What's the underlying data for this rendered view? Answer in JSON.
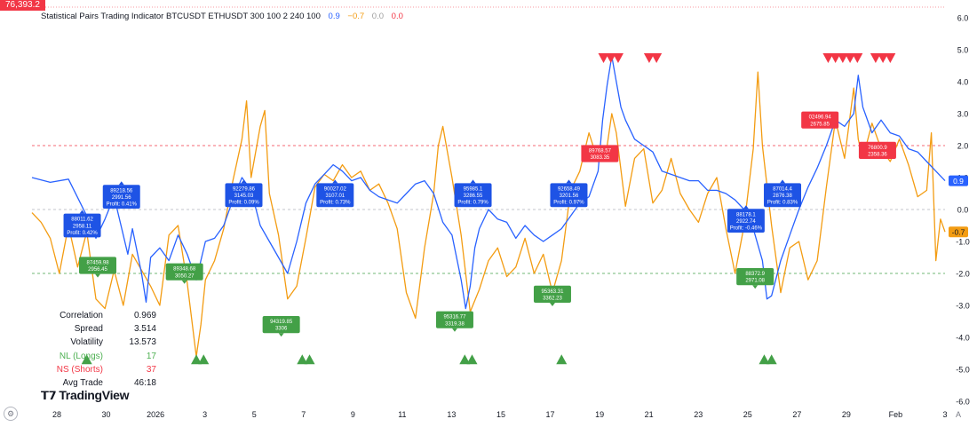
{
  "price_tag": "76,393.2",
  "title": {
    "text": "Statistical Pairs Trading Indicator BTCUSDT ETHUSDT 300 100 2 240 100",
    "val_blue": "0.9",
    "val_orange": "−0.7",
    "val_gray": "0.0",
    "val_red": "0.0"
  },
  "colors": {
    "blue": "#2962ff",
    "orange": "#f39c12",
    "green": "#43a047",
    "red": "#f23645",
    "zero_line": "#b0b3bb"
  },
  "stats": [
    {
      "label": "Correlation",
      "value": "0.969",
      "color": "normal"
    },
    {
      "label": "Spread",
      "value": "3.514",
      "color": "normal"
    },
    {
      "label": "Volatility",
      "value": "13.573",
      "color": "normal"
    },
    {
      "label": "NL (Longs)",
      "value": "17",
      "color": "green"
    },
    {
      "label": "NS (Shorts)",
      "value": "37",
      "color": "red"
    },
    {
      "label": "Avg Trade (H:M)",
      "value": "46:18",
      "color": "normal"
    }
  ],
  "logo": "TradingView",
  "axis_control": "A",
  "chart_data": {
    "type": "line",
    "x_ticks": [
      "28",
      "30",
      "2026",
      "3",
      "5",
      "7",
      "9",
      "11",
      "13",
      "15",
      "17",
      "19",
      "21",
      "23",
      "25",
      "27",
      "29",
      "Feb",
      "3"
    ],
    "y_ticks": [
      "6.0",
      "5.0",
      "4.0",
      "3.0",
      "2.0",
      "1.0",
      "0.0",
      "-1.0",
      "-2.0",
      "-3.0",
      "-4.0",
      "-5.0",
      "-6.0"
    ],
    "ylim": [
      -6.0,
      6.0
    ],
    "xlim": [
      0,
      100
    ],
    "thresholds": {
      "upper": 2.0,
      "zero": 0.0,
      "lower": -2.0
    },
    "last_values": [
      {
        "series": "blue",
        "value": 0.9,
        "label": "0.9"
      },
      {
        "series": "orange",
        "value": -0.7,
        "label": "-0.7"
      }
    ],
    "series": [
      {
        "color_key": "blue",
        "points": [
          [
            0,
            1.0
          ],
          [
            2,
            0.85
          ],
          [
            4,
            0.95
          ],
          [
            6,
            -0.2
          ],
          [
            7,
            -0.9
          ],
          [
            8,
            -0.3
          ],
          [
            9,
            0.4
          ],
          [
            10,
            -0.8
          ],
          [
            10.5,
            -1.4
          ],
          [
            11,
            -0.6
          ],
          [
            12,
            -2.0
          ],
          [
            12.5,
            -2.9
          ],
          [
            13,
            -1.5
          ],
          [
            14,
            -1.2
          ],
          [
            15,
            -1.6
          ],
          [
            16,
            -0.8
          ],
          [
            17,
            -1.4
          ],
          [
            18,
            -2.2
          ],
          [
            19,
            -1.0
          ],
          [
            20,
            -0.9
          ],
          [
            21,
            -0.5
          ],
          [
            22,
            0.3
          ],
          [
            23,
            1.0
          ],
          [
            24,
            0.6
          ],
          [
            25,
            -0.5
          ],
          [
            26,
            -1.0
          ],
          [
            27,
            -1.5
          ],
          [
            28,
            -2.0
          ],
          [
            29,
            -1.0
          ],
          [
            30,
            0.2
          ],
          [
            31,
            0.8
          ],
          [
            32,
            1.1
          ],
          [
            33,
            1.4
          ],
          [
            34,
            1.2
          ],
          [
            35,
            0.9
          ],
          [
            36,
            1.0
          ],
          [
            37,
            0.6
          ],
          [
            38,
            0.4
          ],
          [
            39,
            0.3
          ],
          [
            40,
            0.2
          ],
          [
            41,
            0.5
          ],
          [
            42,
            0.8
          ],
          [
            43,
            0.9
          ],
          [
            44,
            0.5
          ],
          [
            45,
            -0.4
          ],
          [
            46,
            -0.8
          ],
          [
            47,
            -2.2
          ],
          [
            47.5,
            -3.1
          ],
          [
            48,
            -2.4
          ],
          [
            48.5,
            -1.2
          ],
          [
            49,
            -0.6
          ],
          [
            50,
            0.0
          ],
          [
            51,
            -0.3
          ],
          [
            52,
            -0.4
          ],
          [
            53,
            -0.9
          ],
          [
            54,
            -0.5
          ],
          [
            55,
            -0.8
          ],
          [
            56,
            -1.0
          ],
          [
            57,
            -0.8
          ],
          [
            58,
            -0.6
          ],
          [
            59,
            -0.2
          ],
          [
            60,
            0.2
          ],
          [
            61,
            0.4
          ],
          [
            62,
            1.2
          ],
          [
            62.5,
            2.8
          ],
          [
            63,
            3.9
          ],
          [
            63.5,
            4.8
          ],
          [
            64,
            4.0
          ],
          [
            64.5,
            3.2
          ],
          [
            65,
            2.8
          ],
          [
            66,
            2.2
          ],
          [
            67,
            2.0
          ],
          [
            68,
            1.8
          ],
          [
            69,
            1.2
          ],
          [
            70,
            1.1
          ],
          [
            71,
            1.0
          ],
          [
            72,
            0.9
          ],
          [
            73,
            0.9
          ],
          [
            74,
            0.6
          ],
          [
            75,
            0.6
          ],
          [
            76,
            0.5
          ],
          [
            77,
            0.3
          ],
          [
            78,
            0.0
          ],
          [
            79,
            -0.6
          ],
          [
            80,
            -1.6
          ],
          [
            80.5,
            -2.8
          ],
          [
            81,
            -2.7
          ],
          [
            82,
            -1.6
          ],
          [
            83,
            -0.8
          ],
          [
            84,
            0.0
          ],
          [
            85,
            0.7
          ],
          [
            86,
            1.3
          ],
          [
            87,
            2.0
          ],
          [
            88,
            2.8
          ],
          [
            89,
            2.6
          ],
          [
            90,
            3.0
          ],
          [
            90.5,
            4.2
          ],
          [
            91,
            3.2
          ],
          [
            92,
            2.4
          ],
          [
            93,
            2.8
          ],
          [
            94,
            2.4
          ],
          [
            95,
            2.3
          ],
          [
            96,
            1.9
          ],
          [
            97,
            1.8
          ],
          [
            98,
            1.5
          ],
          [
            99,
            1.2
          ],
          [
            100,
            0.9
          ]
        ]
      },
      {
        "color_key": "orange",
        "points": [
          [
            0,
            -0.1
          ],
          [
            1,
            -0.4
          ],
          [
            2,
            -0.9
          ],
          [
            3,
            -2.0
          ],
          [
            4,
            -0.5
          ],
          [
            5,
            -1.8
          ],
          [
            6,
            -0.7
          ],
          [
            7,
            -2.8
          ],
          [
            8,
            -3.1
          ],
          [
            9,
            -1.9
          ],
          [
            10,
            -3.0
          ],
          [
            11,
            -1.4
          ],
          [
            12,
            -1.9
          ],
          [
            13,
            -2.4
          ],
          [
            14,
            -3.0
          ],
          [
            15,
            -0.8
          ],
          [
            16,
            -0.5
          ],
          [
            17,
            -2.3
          ],
          [
            18,
            -4.6
          ],
          [
            18.5,
            -3.6
          ],
          [
            19,
            -2.2
          ],
          [
            20,
            -1.6
          ],
          [
            21,
            -0.6
          ],
          [
            22,
            0.9
          ],
          [
            23,
            2.2
          ],
          [
            23.5,
            3.4
          ],
          [
            24,
            1.0
          ],
          [
            25,
            2.6
          ],
          [
            25.5,
            3.1
          ],
          [
            26,
            0.5
          ],
          [
            27,
            -0.8
          ],
          [
            28,
            -2.8
          ],
          [
            29,
            -2.4
          ],
          [
            30,
            -0.9
          ],
          [
            31,
            0.7
          ],
          [
            32,
            1.1
          ],
          [
            33,
            0.9
          ],
          [
            34,
            1.4
          ],
          [
            35,
            1.0
          ],
          [
            36,
            1.2
          ],
          [
            37,
            0.6
          ],
          [
            38,
            0.8
          ],
          [
            39,
            0.2
          ],
          [
            40,
            -0.6
          ],
          [
            41,
            -2.6
          ],
          [
            42,
            -3.4
          ],
          [
            43,
            -1.2
          ],
          [
            44,
            0.5
          ],
          [
            44.5,
            2.0
          ],
          [
            45,
            2.6
          ],
          [
            46,
            1.0
          ],
          [
            47,
            -0.8
          ],
          [
            48,
            -3.2
          ],
          [
            49,
            -2.5
          ],
          [
            50,
            -1.6
          ],
          [
            51,
            -1.2
          ],
          [
            52,
            -2.1
          ],
          [
            53,
            -1.8
          ],
          [
            54,
            -0.9
          ],
          [
            55,
            -2.0
          ],
          [
            56,
            -1.4
          ],
          [
            57,
            -2.6
          ],
          [
            58,
            -1.6
          ],
          [
            59,
            0.6
          ],
          [
            60,
            1.2
          ],
          [
            61,
            2.4
          ],
          [
            62,
            1.5
          ],
          [
            63,
            2.0
          ],
          [
            63.5,
            3.0
          ],
          [
            64,
            2.4
          ],
          [
            65,
            0.1
          ],
          [
            66,
            1.6
          ],
          [
            67,
            1.9
          ],
          [
            68,
            0.2
          ],
          [
            69,
            0.6
          ],
          [
            70,
            1.6
          ],
          [
            71,
            0.5
          ],
          [
            72,
            0.0
          ],
          [
            73,
            -0.4
          ],
          [
            74,
            0.5
          ],
          [
            75,
            1.0
          ],
          [
            76,
            -0.6
          ],
          [
            77,
            -2.0
          ],
          [
            78,
            -0.5
          ],
          [
            79,
            1.9
          ],
          [
            79.5,
            4.3
          ],
          [
            80,
            2.0
          ],
          [
            81,
            -0.5
          ],
          [
            82,
            -2.6
          ],
          [
            83,
            -1.2
          ],
          [
            84,
            -1.0
          ],
          [
            85,
            -2.2
          ],
          [
            86,
            -1.6
          ],
          [
            87,
            0.7
          ],
          [
            88,
            2.8
          ],
          [
            89,
            1.6
          ],
          [
            90,
            3.8
          ],
          [
            90.5,
            2.2
          ],
          [
            91,
            1.6
          ],
          [
            92,
            2.7
          ],
          [
            93,
            1.9
          ],
          [
            94,
            1.5
          ],
          [
            95,
            2.2
          ],
          [
            96,
            1.4
          ],
          [
            97,
            0.4
          ],
          [
            98,
            0.6
          ],
          [
            98.5,
            2.4
          ],
          [
            99,
            -1.6
          ],
          [
            99.5,
            -0.3
          ],
          [
            100,
            -0.7
          ]
        ]
      }
    ],
    "long_markers_x": [
      6,
      18,
      18.8,
      29.6,
      30.4,
      47.4,
      48.2,
      58,
      80.2,
      81
    ],
    "short_markers_x": [
      62.6,
      63.4,
      64.2,
      67.6,
      68.4,
      87.2,
      88,
      88.8,
      89.6,
      90.4,
      92.4,
      93.2,
      94
    ],
    "labels": [
      {
        "kind": "blue",
        "x": 5.5,
        "y": -0.5,
        "lines": [
          "88011.62",
          "2958.11",
          "Profit: 0.42%"
        ]
      },
      {
        "kind": "blue",
        "x": 9.8,
        "y": 0.4,
        "lines": [
          "89218.56",
          "2991.56",
          "Profit: 0.41%"
        ]
      },
      {
        "kind": "blue",
        "x": 23.2,
        "y": 0.45,
        "lines": [
          "92279.86",
          "3145.03",
          "Profit: 0.09%"
        ]
      },
      {
        "kind": "blue",
        "x": 33.2,
        "y": 0.45,
        "lines": [
          "90027.02",
          "3107.01",
          "Profit: 0.73%"
        ]
      },
      {
        "kind": "blue",
        "x": 48.3,
        "y": 0.45,
        "lines": [
          "95985.1",
          "3286.55",
          "Profit: 0.79%"
        ]
      },
      {
        "kind": "blue",
        "x": 58.8,
        "y": 0.45,
        "lines": [
          "92658.49",
          "3201.56",
          "Profit: 0.97%"
        ]
      },
      {
        "kind": "blue",
        "x": 78.2,
        "y": -0.35,
        "lines": [
          "88178.1",
          "2922.74",
          "Profit: -0.46%"
        ]
      },
      {
        "kind": "blue",
        "x": 82.2,
        "y": 0.45,
        "lines": [
          "87014.4",
          "2876.38",
          "Profit: 0.83%"
        ]
      },
      {
        "kind": "green",
        "x": 7.2,
        "y": -1.75,
        "lines": [
          "87459.98",
          "2956.45"
        ]
      },
      {
        "kind": "green",
        "x": 16.7,
        "y": -1.95,
        "lines": [
          "89348.68",
          "3050.27"
        ]
      },
      {
        "kind": "green",
        "x": 27.3,
        "y": -3.6,
        "lines": [
          "94319.85",
          "3306"
        ]
      },
      {
        "kind": "green",
        "x": 46.3,
        "y": -3.45,
        "lines": [
          "95316.77",
          "3319.38"
        ]
      },
      {
        "kind": "green",
        "x": 57.0,
        "y": -2.65,
        "lines": [
          "95363.31",
          "3362.23"
        ]
      },
      {
        "kind": "green",
        "x": 79.2,
        "y": -2.1,
        "lines": [
          "88372.9",
          "2971.08"
        ]
      },
      {
        "kind": "red",
        "x": 62.2,
        "y": 1.75,
        "lines": [
          "89768.57",
          "3083.35"
        ]
      },
      {
        "kind": "red",
        "x": 86.3,
        "y": 2.8,
        "lines": [
          "02496.94",
          "2675.85"
        ]
      },
      {
        "kind": "red",
        "x": 92.6,
        "y": 1.85,
        "lines": [
          "76800.9",
          "2358.36"
        ]
      }
    ]
  }
}
